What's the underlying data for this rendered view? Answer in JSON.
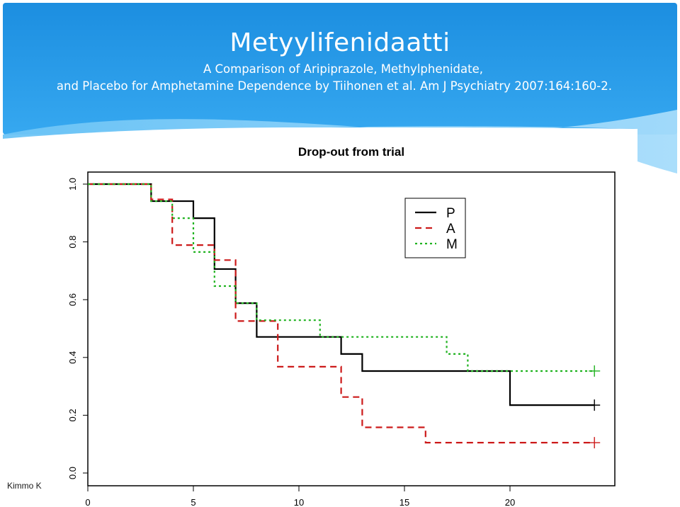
{
  "slide": {
    "title": "Metyylifenidaatti",
    "subtitle_line1": "A Comparison of Aripiprazole, Methylphenidate,",
    "subtitle_line2": "and Placebo for Amphetamine Dependence by Tiihonen et al. Am J Psychiatry 2007:164:160-2.",
    "author": "Kimmo K",
    "colors": {
      "header_blue": "#1f8fe0",
      "header_light": "#8fd0f8"
    }
  },
  "chart_data": {
    "type": "line",
    "title": "Drop-out from trial",
    "xlabel": "",
    "ylabel": "",
    "xlim": [
      0,
      25
    ],
    "ylim": [
      0,
      1.0
    ],
    "x_ticks": [
      0,
      5,
      10,
      15,
      20
    ],
    "x_tick_labels": [
      "0",
      "5",
      "10",
      "15",
      "20"
    ],
    "y_ticks": [
      0.0,
      0.2,
      0.4,
      0.6,
      0.8,
      1.0
    ],
    "y_tick_labels": [
      "0.0",
      "0.2",
      "0.4",
      "0.6",
      "0.8",
      "1.0"
    ],
    "legend_position": "top-right",
    "grid": false,
    "series": [
      {
        "name": "P",
        "style": "solid",
        "color": "#000000",
        "x": [
          0,
          3,
          5,
          6,
          7,
          8,
          12,
          13,
          20,
          24
        ],
        "y": [
          1.0,
          0.941,
          0.882,
          0.706,
          0.588,
          0.471,
          0.412,
          0.353,
          0.235,
          0.235
        ],
        "censored_x": [
          24
        ]
      },
      {
        "name": "A",
        "style": "dashed",
        "color": "#cc1a1a",
        "x": [
          0,
          3,
          4,
          6,
          7,
          9,
          12,
          13,
          16,
          24
        ],
        "y": [
          1.0,
          0.947,
          0.789,
          0.737,
          0.526,
          0.368,
          0.263,
          0.158,
          0.105,
          0.105
        ],
        "censored_x": [
          24
        ]
      },
      {
        "name": "M",
        "style": "dotted",
        "color": "#1fb21f",
        "x": [
          0,
          3,
          4,
          5,
          6,
          7,
          8,
          11,
          17,
          18,
          24
        ],
        "y": [
          1.0,
          0.941,
          0.882,
          0.765,
          0.647,
          0.588,
          0.529,
          0.471,
          0.412,
          0.353,
          0.353
        ],
        "censored_x": [
          24
        ]
      }
    ]
  }
}
